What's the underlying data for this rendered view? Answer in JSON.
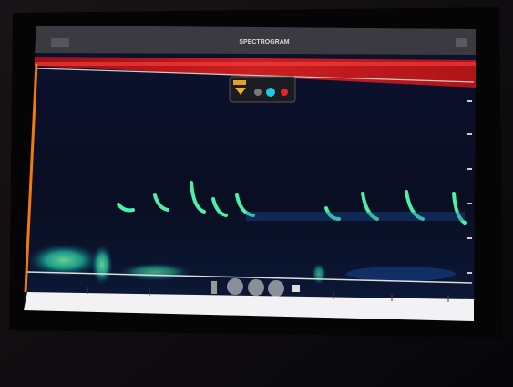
{
  "header": {
    "title": "SPECTROGRAM"
  }
}
